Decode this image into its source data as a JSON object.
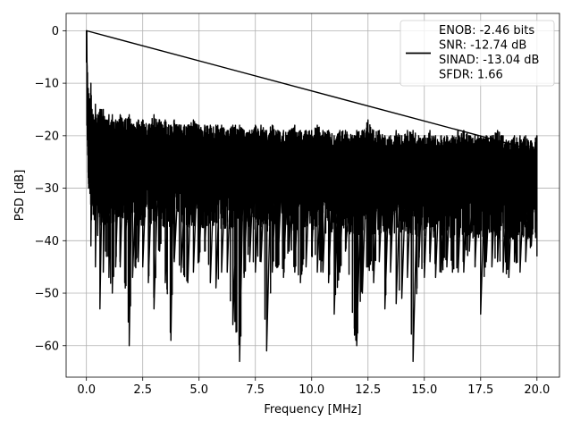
{
  "chart_data": {
    "type": "line",
    "title": "",
    "xlabel": "Frequency [MHz]",
    "ylabel": "PSD [dB]",
    "xlim": [
      -0.9,
      21.0
    ],
    "ylim": [
      -66.0,
      3.3
    ],
    "xticks": [
      0.0,
      2.5,
      5.0,
      7.5,
      10.0,
      12.5,
      15.0,
      17.5,
      20.0
    ],
    "xtick_labels": [
      "0.0",
      "2.5",
      "5.0",
      "7.5",
      "10.0",
      "12.5",
      "15.0",
      "17.5",
      "20.0"
    ],
    "yticks": [
      0,
      -10,
      -20,
      -30,
      -40,
      -50,
      -60
    ],
    "ytick_labels": [
      "0",
      "−10",
      "−20",
      "−30",
      "−40",
      "−50",
      "−60"
    ],
    "grid": true,
    "legend_position": "top-right",
    "legend_entries": [
      "ENOB: -2.46 bits",
      "SNR: -12.74 dB",
      "SINAD: -13.04 dB",
      "SFDR: 1.66"
    ],
    "line_color": "#000000",
    "series": [
      {
        "x": [
          0.0,
          0.02,
          0.05,
          0.08,
          0.1,
          0.12,
          0.15,
          0.2,
          0.25,
          0.3,
          0.35,
          0.4,
          0.5,
          0.6,
          0.75,
          0.85,
          1.0,
          1.15,
          1.3,
          1.5,
          1.7,
          1.9,
          2.05,
          2.3,
          2.5,
          2.75,
          3.0,
          3.25,
          3.5,
          3.75,
          3.9,
          4.2,
          4.5,
          4.75,
          5.0,
          5.25,
          5.5,
          5.75,
          6.0,
          6.25,
          6.5,
          6.8,
          7.0,
          7.25,
          7.5,
          7.75,
          8.0,
          8.25,
          8.5,
          8.75,
          9.0,
          9.25,
          9.5,
          9.75,
          10.0,
          10.25,
          10.5,
          10.75,
          11.0,
          11.25,
          11.5,
          11.9,
          12.0,
          12.25,
          12.5,
          12.75,
          13.0,
          13.25,
          13.5,
          13.75,
          14.0,
          14.25,
          14.5,
          14.75,
          15.0,
          15.25,
          15.5,
          15.75,
          16.0,
          16.25,
          16.5,
          16.75,
          17.0,
          17.25,
          17.5,
          17.75,
          18.0,
          18.25,
          18.5,
          18.75,
          19.0,
          19.25,
          19.5,
          19.75,
          20.0
        ],
        "upper": [
          0.0,
          -5,
          -8,
          -11,
          -12,
          -14,
          -13,
          -10,
          -15,
          -16,
          -17,
          -14,
          -16,
          -15,
          -15,
          -17,
          -16,
          -16,
          -17,
          -16,
          -17,
          -16,
          -18,
          -17,
          -17,
          -18,
          -16,
          -17,
          -17,
          -18,
          -17,
          -18,
          -18,
          -17,
          -18,
          -18,
          -18,
          -18,
          -18,
          -19,
          -18,
          -18,
          -19,
          -19,
          -18,
          -18,
          -19,
          -18,
          -19,
          -19,
          -19,
          -18,
          -19,
          -19,
          -19,
          -18,
          -19,
          -19,
          -20,
          -19,
          -19,
          -20,
          -19,
          -19,
          -17,
          -19,
          -19,
          -20,
          -20,
          -19,
          -20,
          -19,
          -19,
          -20,
          -20,
          -19,
          -20,
          -20,
          -20,
          -20,
          -19,
          -19,
          -20,
          -20,
          -20,
          -20,
          -20,
          -19,
          -20,
          -21,
          -20,
          -20,
          -20,
          -21,
          -20
        ],
        "lower": [
          -6,
          -18,
          -22,
          -28,
          -30,
          -27,
          -29,
          -41,
          -33,
          -35,
          -36,
          -45,
          -39,
          -53,
          -46,
          -42,
          -47,
          -50,
          -45,
          -45,
          -48,
          -60,
          -47,
          -44,
          -45,
          -48,
          -53,
          -42,
          -48,
          -59,
          -44,
          -46,
          -48,
          -46,
          -44,
          -42,
          -48,
          -49,
          -46,
          -46,
          -56,
          -63,
          -47,
          -44,
          -46,
          -44,
          -61,
          -46,
          -45,
          -47,
          -42,
          -46,
          -48,
          -45,
          -43,
          -46,
          -46,
          -48,
          -54,
          -46,
          -42,
          -58,
          -60,
          -50,
          -45,
          -48,
          -44,
          -53,
          -46,
          -52,
          -51,
          -47,
          -63,
          -45,
          -47,
          -44,
          -47,
          -46,
          -45,
          -46,
          -46,
          -46,
          -42,
          -45,
          -54,
          -44,
          -45,
          -44,
          -46,
          -47,
          -44,
          -46,
          -44,
          -41,
          -43
        ]
      }
    ]
  }
}
